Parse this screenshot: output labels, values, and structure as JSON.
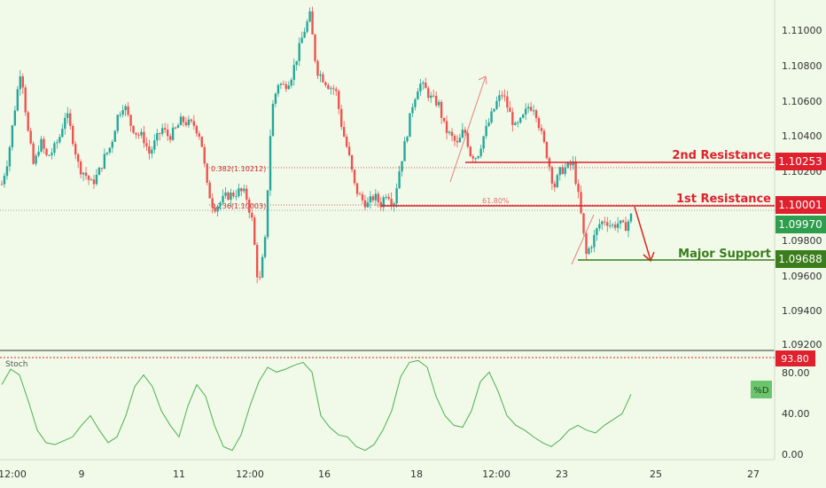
{
  "colors": {
    "background": "#f1fae9",
    "bullish": "#26a69a",
    "bearish": "#ef5350",
    "resistance": "#e0202d",
    "support": "#3a7d1a",
    "current_price": "#2e9e4e",
    "stoch_line": "#4caf50",
    "axis_text": "#333333"
  },
  "price_axis": {
    "ticks": [
      "1.11000",
      "1.10800",
      "1.10600",
      "1.10400",
      "1.10200",
      "1.09800",
      "1.09600",
      "1.09400",
      "1.09200"
    ],
    "range": [
      1.0915,
      1.1117
    ]
  },
  "levels": {
    "second_resistance": {
      "label": "2nd Resistance",
      "price_tag": "1.10253",
      "value": 1.10253
    },
    "first_resistance": {
      "label": "1st Resistance",
      "price_tag": "1.10001",
      "value": 1.10001
    },
    "major_support": {
      "label": "Major Support",
      "price_tag": "1.09688",
      "value": 1.09688
    },
    "current_price": {
      "price_tag": "1.09970",
      "value": 1.0997
    }
  },
  "fib_labels": {
    "f382": "0.382(1.10212)",
    "f236": "0.236(1.10003)",
    "f618": "61.80%"
  },
  "indicator": {
    "name": "Stoch",
    "level_tag": "93.80",
    "d_label": "%D",
    "ticks": [
      "80.00",
      "40.00",
      "0.00"
    ]
  },
  "time_axis": [
    "12:00",
    "9",
    "11",
    "12:00",
    "16",
    "18",
    "12:00",
    "23",
    "25",
    "27"
  ],
  "chart_data": {
    "type": "candlestick",
    "ylim": [
      1.0915,
      1.1117
    ],
    "stoch_ylim": [
      0,
      100
    ],
    "price_path": [
      1.1012,
      1.1028,
      1.1056,
      1.1082,
      1.1045,
      1.1022,
      1.1038,
      1.1028,
      1.1032,
      1.104,
      1.1055,
      1.104,
      1.1022,
      1.1018,
      1.1012,
      1.1018,
      1.1028,
      1.1035,
      1.1052,
      1.106,
      1.1048,
      1.1042,
      1.104,
      1.103,
      1.1038,
      1.1045,
      1.104,
      1.1044,
      1.105,
      1.1048,
      1.1047,
      1.104,
      1.101,
      1.0998,
      1.1001,
      1.1005,
      1.1006,
      1.1008,
      1.1006,
      1.099,
      1.095,
      1.0978,
      1.1055,
      1.1072,
      1.107,
      1.1075,
      1.1088,
      1.1102,
      1.1112,
      1.108,
      1.1075,
      1.107,
      1.1068,
      1.1045,
      1.103,
      1.101,
      1.1003,
      1.1,
      1.1005,
      1.1,
      1.1008,
      1.1,
      1.1022,
      1.104,
      1.106,
      1.1072,
      1.1068,
      1.1062,
      1.106,
      1.1045,
      1.104,
      1.1035,
      1.1045,
      1.103,
      1.1028,
      1.104,
      1.105,
      1.106,
      1.1066,
      1.1055,
      1.1045,
      1.105,
      1.1058,
      1.1058,
      1.1042,
      1.1028,
      1.101,
      1.102,
      1.1022,
      1.1024,
      1.1,
      1.097,
      1.0978,
      1.0988,
      1.0991,
      1.0987,
      1.0989,
      1.0986,
      1.0993
    ],
    "stoch_path": [
      72,
      88,
      82,
      55,
      25,
      12,
      10,
      14,
      18,
      30,
      40,
      25,
      12,
      18,
      40,
      70,
      82,
      70,
      45,
      30,
      18,
      50,
      72,
      60,
      30,
      8,
      4,
      20,
      50,
      75,
      90,
      85,
      88,
      92,
      95,
      85,
      40,
      28,
      20,
      18,
      8,
      4,
      10,
      25,
      45,
      80,
      95,
      97,
      90,
      60,
      40,
      30,
      28,
      45,
      75,
      85,
      65,
      40,
      30,
      25,
      18,
      12,
      8,
      15,
      25,
      30,
      25,
      22,
      30,
      36,
      42,
      62
    ]
  }
}
